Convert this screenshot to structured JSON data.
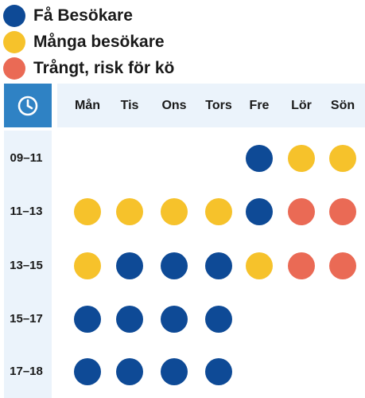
{
  "colors": {
    "few": "#0e4a96",
    "many": "#f6c22b",
    "crowded": "#ea6a55",
    "clock_bg": "#2f82c4",
    "band_bg": "#ebf3fb"
  },
  "icons": {
    "corner": "clock-icon"
  },
  "chart_data": {
    "type": "heatmap",
    "title": "",
    "legend": {
      "placement": "top-left",
      "entries": [
        {
          "key": "few",
          "label": "Få Besökare"
        },
        {
          "key": "many",
          "label": "Många besökare"
        },
        {
          "key": "crowded",
          "label": "Trångt, risk för kö"
        }
      ]
    },
    "columns": [
      "Mån",
      "Tis",
      "Ons",
      "Tors",
      "Fre",
      "Lör",
      "Sön"
    ],
    "rows": [
      "09–11",
      "11–13",
      "13–15",
      "15–17",
      "17–18"
    ],
    "values": [
      [
        null,
        null,
        null,
        null,
        "few",
        "many",
        "many"
      ],
      [
        "many",
        "many",
        "many",
        "many",
        "few",
        "crowded",
        "crowded"
      ],
      [
        "many",
        "few",
        "few",
        "few",
        "many",
        "crowded",
        "crowded"
      ],
      [
        "few",
        "few",
        "few",
        "few",
        null,
        null,
        null
      ],
      [
        "few",
        "few",
        "few",
        "few",
        null,
        null,
        null
      ]
    ]
  }
}
